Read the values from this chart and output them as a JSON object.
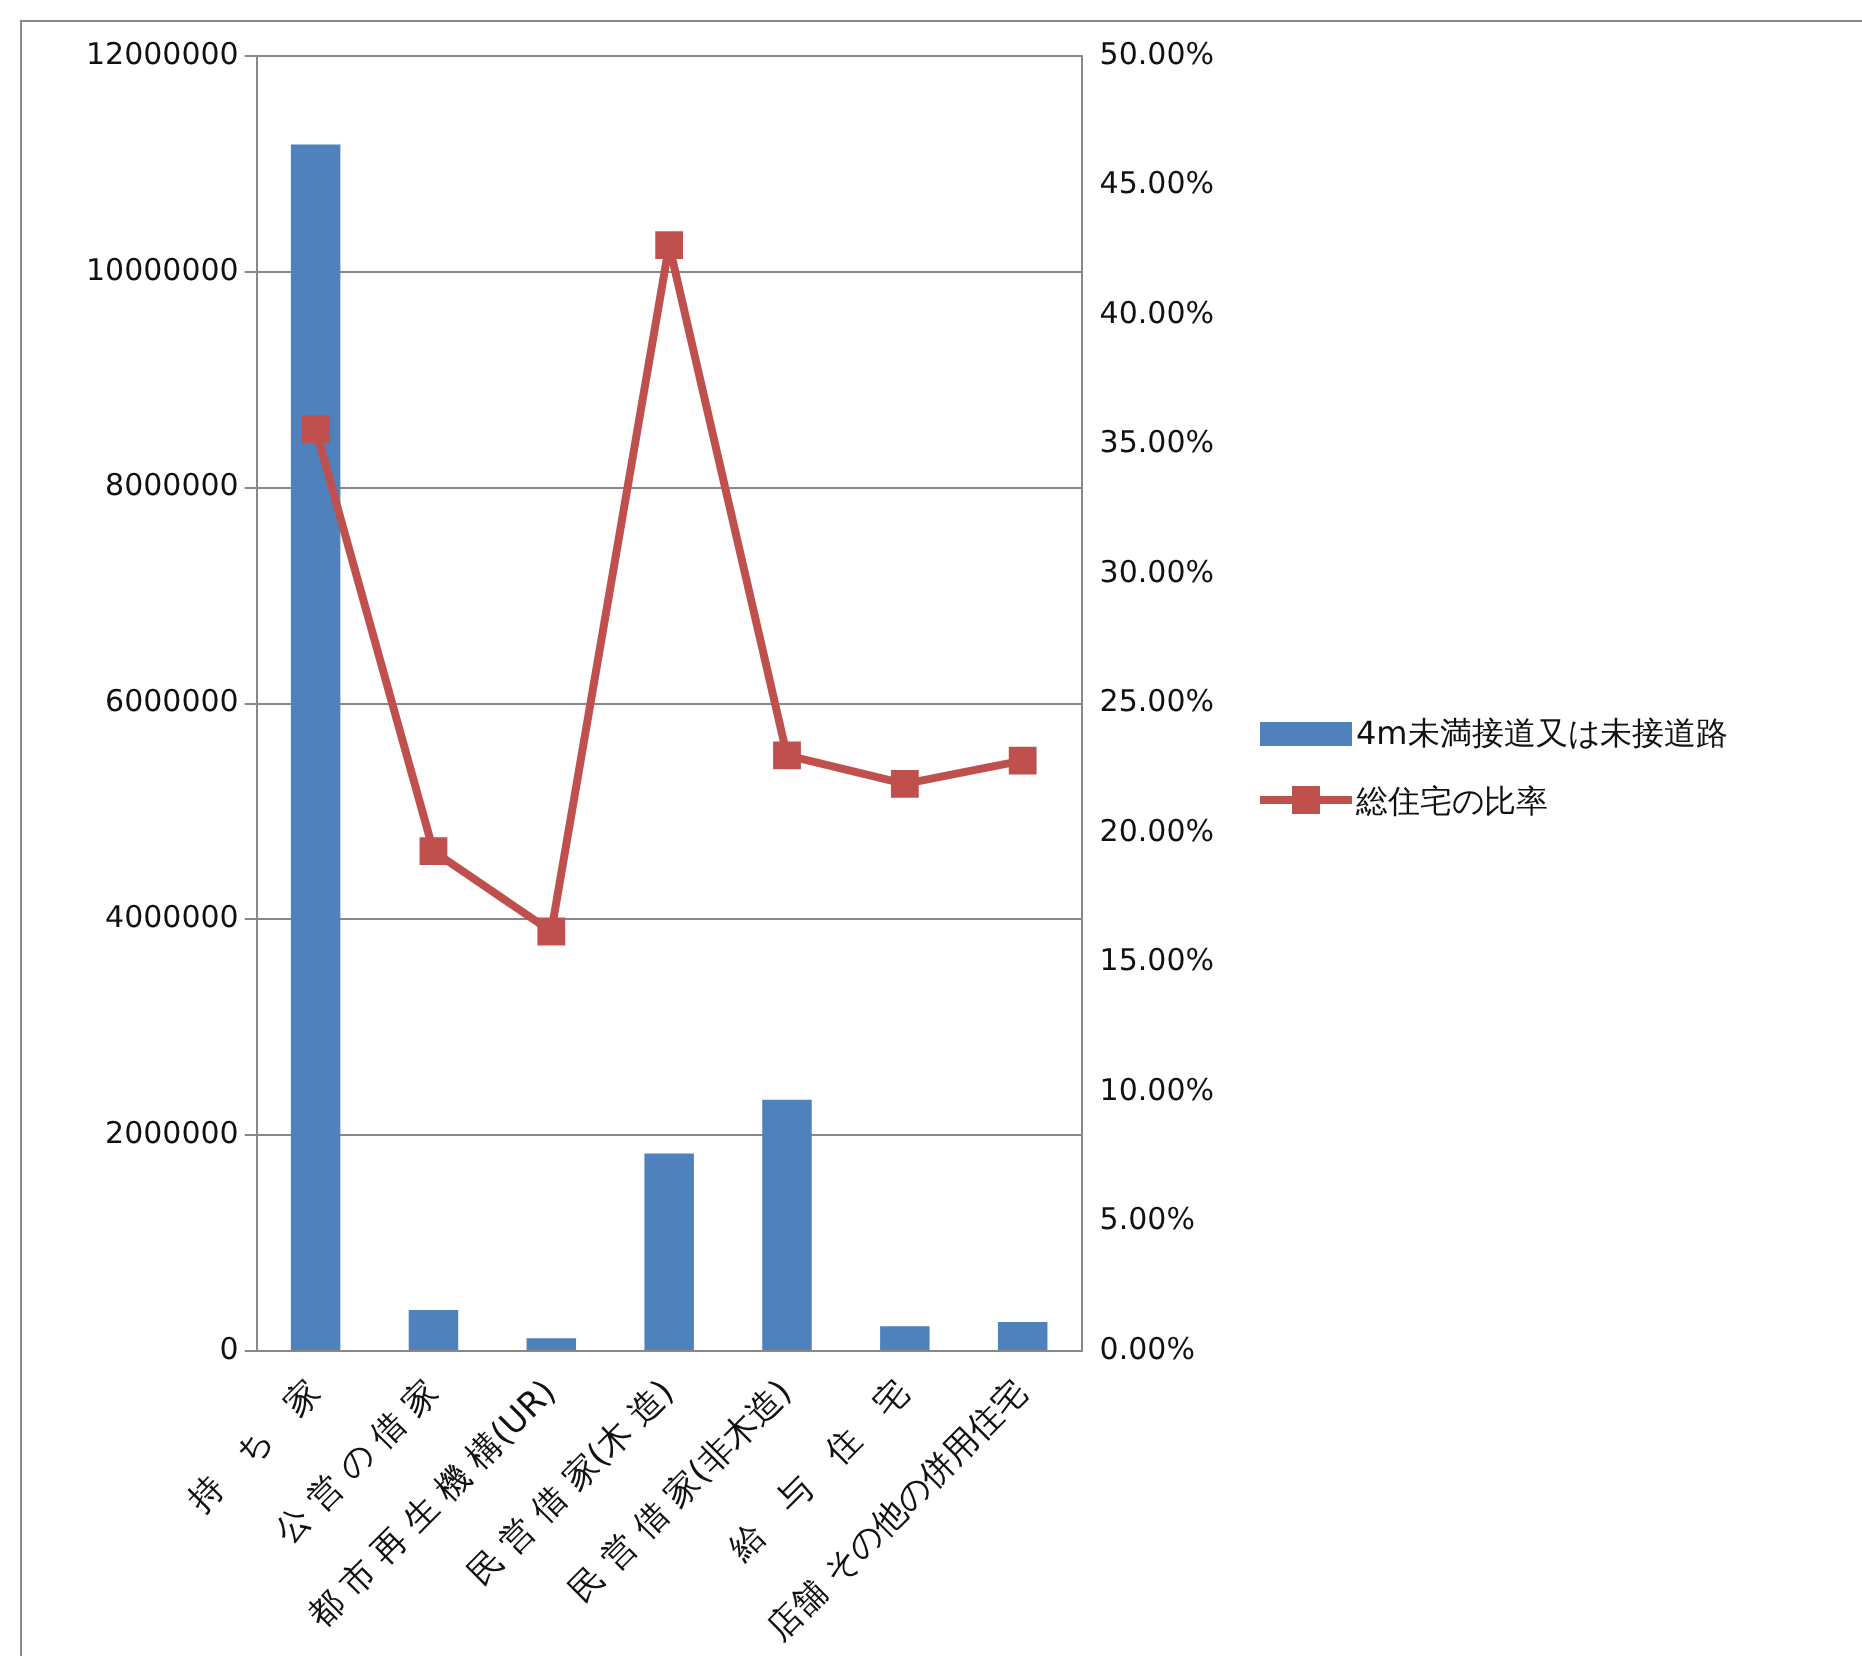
{
  "chart_data": {
    "type": "bar",
    "categories": [
      "持　ち　家",
      "公 営 の 借 家",
      "都 市 再 生 機 構(UR)",
      "民 営 借 家(木 造)",
      "民 営 借 家(非木造)",
      "給　与　住　宅",
      "店舗 その他の併用住宅"
    ],
    "series": [
      {
        "name": "4m未満接道又は未接道路",
        "color": "#4f81bd",
        "values": [
          11180000,
          380000,
          120000,
          1830000,
          2330000,
          230000,
          270000
        ]
      },
      {
        "name": "総住宅の比率",
        "type": "line",
        "axis": "y2",
        "color": "#c0504d",
        "marker": "square",
        "values": [
          35.6,
          19.3,
          16.2,
          42.7,
          23.0,
          21.9,
          22.8
        ]
      }
    ],
    "ylim": [
      0,
      12000000
    ],
    "yticks": [
      0,
      2000000,
      4000000,
      6000000,
      8000000,
      10000000,
      12000000
    ],
    "y2lim": [
      0,
      50
    ],
    "y2ticks": [
      {
        "value": 0,
        "label": "0.00%"
      },
      {
        "value": 5,
        "label": "5.00%"
      },
      {
        "value": 10,
        "label": "10.00%"
      },
      {
        "value": 15,
        "label": "15.00%"
      },
      {
        "value": 20,
        "label": "20.00%"
      },
      {
        "value": 25,
        "label": "25.00%"
      },
      {
        "value": 30,
        "label": "30.00%"
      },
      {
        "value": 35,
        "label": "35.00%"
      },
      {
        "value": 40,
        "label": "40.00%"
      },
      {
        "value": 45,
        "label": "45.00%"
      },
      {
        "value": 50,
        "label": "50.00%"
      }
    ],
    "grid": "y",
    "legend": "right"
  }
}
